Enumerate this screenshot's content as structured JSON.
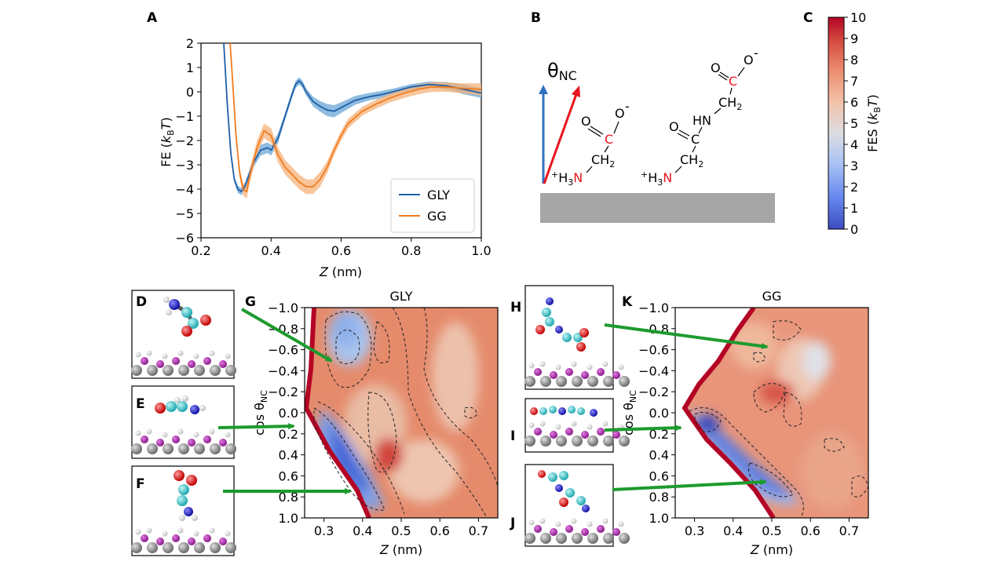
{
  "panels": {
    "A": "A",
    "B": "B",
    "C": "C",
    "D": "D",
    "E": "E",
    "F": "F",
    "G": "G",
    "H": "H",
    "I": "I",
    "J": "J",
    "K": "K"
  },
  "colors": {
    "gly": "#1f5fa8",
    "gg": "#f07c1e",
    "gly_band": "#6aa6d6",
    "gg_band": "#f5b27a",
    "arrow": "#1d9a2e",
    "red_vector": "#e8141e",
    "blue_vector": "#2f6fc0",
    "surface": "#a6a6a6"
  },
  "chart_data": [
    {
      "type": "line",
      "panel": "A",
      "xlabel": "Z (nm)",
      "ylabel": "FE (kBT)",
      "xlim": [
        0.2,
        1.0
      ],
      "ylim": [
        -6,
        2
      ],
      "xticks": [
        "0.2",
        "0.4",
        "0.6",
        "0.8",
        "1.0"
      ],
      "yticks": [
        "2",
        "1",
        "0",
        "−1",
        "−2",
        "−3",
        "−4",
        "−5",
        "−6"
      ],
      "legend": {
        "position": "bottom-right",
        "entries": [
          "GLY",
          "GG"
        ]
      },
      "series": [
        {
          "name": "GLY",
          "x": [
            0.265,
            0.275,
            0.285,
            0.295,
            0.305,
            0.315,
            0.325,
            0.335,
            0.35,
            0.37,
            0.39,
            0.4,
            0.42,
            0.44,
            0.46,
            0.47,
            0.48,
            0.49,
            0.5,
            0.52,
            0.54,
            0.56,
            0.58,
            0.6,
            0.64,
            0.68,
            0.72,
            0.76,
            0.8,
            0.85,
            0.9,
            0.95,
            1.0
          ],
          "y": [
            2.0,
            -0.5,
            -2.5,
            -3.6,
            -4.0,
            -4.1,
            -3.9,
            -3.5,
            -2.9,
            -2.4,
            -2.3,
            -2.4,
            -1.9,
            -1.0,
            -0.1,
            0.3,
            0.45,
            0.3,
            0.0,
            -0.4,
            -0.6,
            -0.75,
            -0.8,
            -0.65,
            -0.35,
            -0.2,
            -0.1,
            0.05,
            0.2,
            0.3,
            0.25,
            0.1,
            -0.05
          ],
          "band": [
            0.05,
            0.05,
            0.1,
            0.12,
            0.15,
            0.15,
            0.15,
            0.15,
            0.2,
            0.22,
            0.22,
            0.22,
            0.2,
            0.15,
            0.15,
            0.15,
            0.15,
            0.15,
            0.15,
            0.2,
            0.22,
            0.25,
            0.25,
            0.22,
            0.18,
            0.15,
            0.15,
            0.12,
            0.12,
            0.12,
            0.15,
            0.2,
            0.2
          ]
        },
        {
          "name": "GG",
          "x": [
            0.283,
            0.29,
            0.3,
            0.31,
            0.32,
            0.33,
            0.34,
            0.36,
            0.38,
            0.4,
            0.42,
            0.44,
            0.46,
            0.48,
            0.5,
            0.52,
            0.54,
            0.56,
            0.58,
            0.6,
            0.62,
            0.66,
            0.7,
            0.74,
            0.78,
            0.82,
            0.86,
            0.9,
            0.94,
            1.0
          ],
          "y": [
            2.0,
            0.5,
            -1.8,
            -3.3,
            -4.0,
            -4.1,
            -3.4,
            -2.3,
            -1.6,
            -1.8,
            -2.6,
            -3.1,
            -3.4,
            -3.7,
            -3.9,
            -3.9,
            -3.6,
            -3.1,
            -2.4,
            -1.8,
            -1.3,
            -0.8,
            -0.5,
            -0.25,
            -0.05,
            0.1,
            0.2,
            0.2,
            0.15,
            0.1
          ],
          "band": [
            0.05,
            0.1,
            0.15,
            0.2,
            0.25,
            0.3,
            0.3,
            0.3,
            0.3,
            0.3,
            0.3,
            0.3,
            0.3,
            0.3,
            0.3,
            0.3,
            0.3,
            0.25,
            0.2,
            0.2,
            0.2,
            0.18,
            0.18,
            0.18,
            0.2,
            0.2,
            0.2,
            0.2,
            0.2,
            0.25
          ]
        }
      ]
    },
    {
      "type": "colorbar",
      "panel": "C",
      "label": "FES (kBT)",
      "ylim": [
        0,
        10
      ],
      "yticks": [
        "0",
        "1",
        "2",
        "3",
        "4",
        "5",
        "6",
        "7",
        "8",
        "9",
        "10"
      ]
    },
    {
      "type": "heatmap",
      "panel": "G",
      "title": "GLY",
      "xlabel": "Z (nm)",
      "ylabel": "cos θNC",
      "xlim": [
        0.25,
        0.75
      ],
      "ylim": [
        -1.0,
        1.0
      ],
      "xticks": [
        "0.3",
        "0.4",
        "0.5",
        "0.6",
        "0.7"
      ],
      "yticks": [
        "−1.0",
        "−0.8",
        "−0.6",
        "−0.4",
        "−0.2",
        "0.0",
        "0.2",
        "0.4",
        "0.6",
        "0.8",
        "1.0"
      ],
      "minima": [
        {
          "z": 0.33,
          "cos": 0.35,
          "fes": 1.0
        },
        {
          "z": 0.35,
          "cos": -0.5,
          "fes": 3.0
        },
        {
          "z": 0.46,
          "cos": 0.45,
          "fes": 8.0
        }
      ]
    },
    {
      "type": "heatmap",
      "panel": "K",
      "title": "GG",
      "xlabel": "Z (nm)",
      "ylabel": "cos θNC",
      "xlim": [
        0.25,
        0.75
      ],
      "ylim": [
        -1.0,
        1.0
      ],
      "xticks": [
        "0.3",
        "0.4",
        "0.5",
        "0.6",
        "0.7"
      ],
      "yticks": [
        "−1.0",
        "−0.8",
        "−0.6",
        "−0.4",
        "−0.2",
        "0.0",
        "0.2",
        "0.4",
        "0.6",
        "0.8",
        "1.0"
      ],
      "minima": [
        {
          "z": 0.32,
          "cos": 0.15,
          "fes": 0.5
        },
        {
          "z": 0.5,
          "cos": 0.7,
          "fes": 1.5
        },
        {
          "z": 0.55,
          "cos": -0.5,
          "fes": 4.5
        }
      ]
    }
  ],
  "schematic": {
    "theta_label": "θ",
    "theta_sub": "NC",
    "gly": {
      "o": "O",
      "o_minus": "O",
      "minus": "-",
      "c": "C",
      "ch2": "CH",
      "ch2_sub": "2",
      "h3n_plus": "+",
      "h3n_h": "H",
      "h3n_sub": "3",
      "n": "N"
    },
    "gg": {
      "o": "O",
      "o_minus": "O",
      "minus": "-",
      "c": "C",
      "ch2": "CH",
      "ch2_sub": "2",
      "hn": "HN",
      "o2": "O",
      "c2": "C",
      "ch2b": "CH",
      "ch2b_sub": "2",
      "plus": "+",
      "h": "H",
      "sub3": "3",
      "n": "N"
    }
  }
}
